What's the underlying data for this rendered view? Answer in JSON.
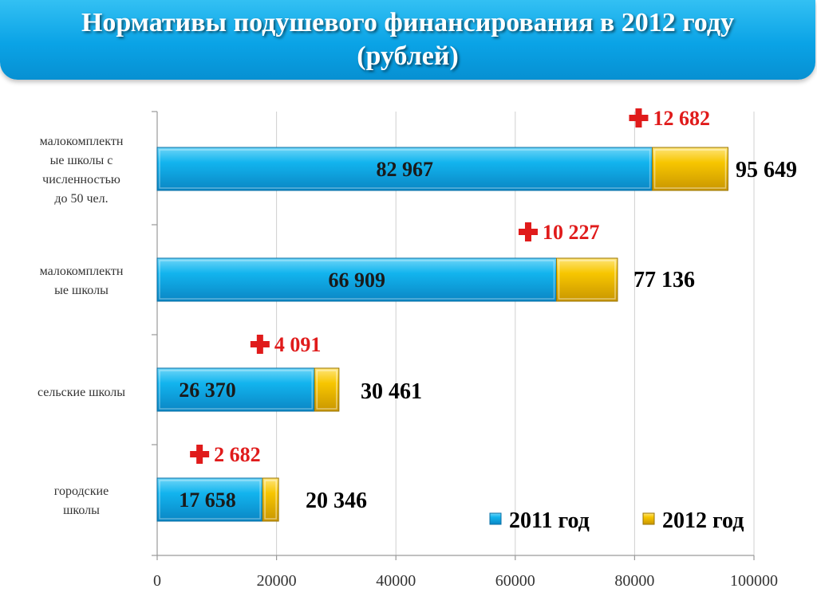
{
  "header": {
    "title_line1": "Нормативы подушевого финансирования в 2012 году",
    "title_line2": "(рублей)"
  },
  "chart_data": {
    "type": "bar",
    "orientation": "horizontal",
    "stacked": true,
    "categories": [
      [
        "малокомплектн",
        "ые школы с",
        "численностью",
        "до 50 чел."
      ],
      [
        "малокомплектн",
        "ые школы"
      ],
      [
        "сельские школы"
      ],
      [
        "городские",
        "школы"
      ]
    ],
    "series": [
      {
        "name": "2011 год",
        "color": "#12b4ee",
        "values": [
          82967,
          66909,
          26370,
          17658
        ],
        "labels": [
          "82 967",
          "66 909",
          "26 370",
          "17 658"
        ]
      },
      {
        "name": "2012 год",
        "color": "#f7c600",
        "values": [
          12682,
          10227,
          4091,
          2682
        ],
        "labels": [
          "12 682",
          "10 227",
          "4 091",
          "2 682"
        ]
      }
    ],
    "totals": [
      "95 649",
      "77 136",
      "30 461",
      "20 346"
    ],
    "xlim": [
      0,
      100000
    ],
    "xticks": [
      0,
      20000,
      40000,
      60000,
      80000,
      100000
    ],
    "xtick_labels": [
      "0",
      "20000",
      "40000",
      "60000",
      "80000",
      "100000"
    ],
    "grid": true,
    "legend_position": "bottom-right",
    "colors": {
      "plus_sign": "#e01b1b",
      "increase_text": "#e01b1b"
    }
  }
}
